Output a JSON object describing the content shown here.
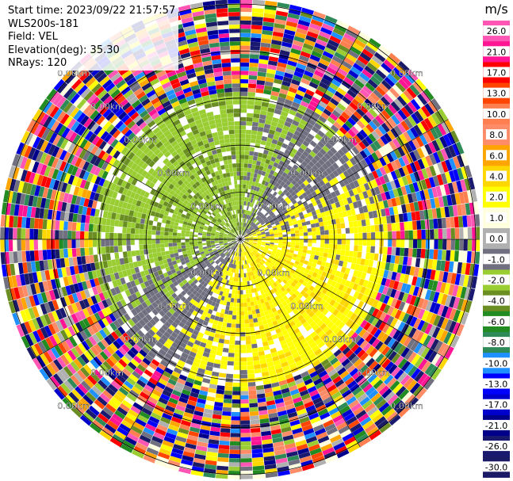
{
  "header": {
    "start_time": "Start time: 2023/09/22 21:57:57",
    "instrument": "WLS200s-181",
    "field": "Field: VEL",
    "elevation": "Elevation(deg): 35.30",
    "nrays": "NRays: 120"
  },
  "chart_data": {
    "type": "heatmap",
    "projection": "polar PPI",
    "field": "VEL",
    "units": "m/s",
    "n_rays": 120,
    "range_rings_km": [
      1.0,
      2.0,
      3.0,
      4.0,
      5.0
    ],
    "ring_label": "0.00km",
    "colorbar": {
      "ticks": [
        26.0,
        21.0,
        17.0,
        13.0,
        10.0,
        8.0,
        6.0,
        4.0,
        2.0,
        1.0,
        0.0,
        -1.0,
        -2.0,
        -4.0,
        -6.0,
        -8.0,
        -10.0,
        -13.0,
        -17.0,
        -21.0,
        -26.0,
        -30.0
      ],
      "tick_labels": [
        "26.0",
        "21.0",
        "17.0",
        "13.0",
        "10.0",
        "8.0",
        "6.0",
        "4.0",
        "2.0",
        "1.0",
        "0.0",
        "-1.0",
        "-2.0",
        "-4.0",
        "-6.0",
        "-8.0",
        "-10.0",
        "-13.0",
        "-17.0",
        "-21.0",
        "-26.0",
        "-30.0"
      ],
      "colors": [
        "#ff55b4",
        "#ff1493",
        "#ff0000",
        "#ff4500",
        "#ff7f50",
        "#ff8c69",
        "#ffa500",
        "#ffd700",
        "#ffff00",
        "#ffffe0",
        "#b0b0b0",
        "#707080",
        "#9acd32",
        "#6b8e23",
        "#228b22",
        "#2e8b57",
        "#1e90ff",
        "#0000ff",
        "#0000cd",
        "#00008b",
        "#191970",
        "#1a1a66"
      ]
    },
    "structure": {
      "inner_region_km": [
        0,
        3.0
      ],
      "inner_pattern": "green (approaching, -1 to -4 m/s) to the north-west, yellow/orange (receding, +2 to +4 m/s) to the south-east, gray near 0 elsewhere",
      "outer_region_km": [
        3.0,
        5.0
      ],
      "outer_pattern": "noisy, all colours"
    }
  }
}
